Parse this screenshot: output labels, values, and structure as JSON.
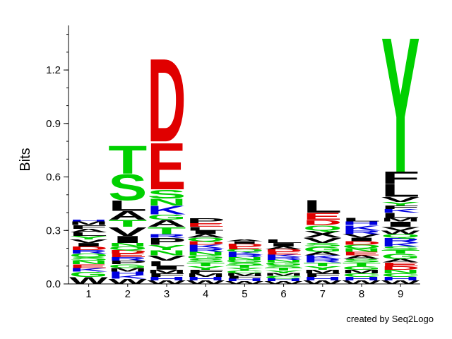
{
  "credit": "created by Seq2Logo",
  "colors": {
    "acidic": "#e00000",
    "polar": "#00d000",
    "basic": "#0000e0",
    "hydrophobic": "#000000"
  },
  "chart_data": {
    "type": "sequence-logo",
    "ylabel": "Bits",
    "ylim": [
      0,
      1.45
    ],
    "yticks": [
      "0.0",
      "0.3",
      "0.6",
      "0.9",
      "1.2"
    ],
    "ytick_values": [
      0,
      0.3,
      0.6,
      0.9,
      1.2
    ],
    "positions": [
      "1",
      "2",
      "3",
      "4",
      "5",
      "6",
      "7",
      "8",
      "9"
    ],
    "columns": [
      [
        [
          "W",
          0.04
        ],
        [
          "G",
          0.03
        ],
        [
          "K",
          0.02
        ],
        [
          "E",
          0.02
        ],
        [
          "N",
          0.02
        ],
        [
          "S",
          0.02
        ],
        [
          "Q",
          0.02
        ],
        [
          "R",
          0.02
        ],
        [
          "D",
          0.02
        ],
        [
          "I",
          0.02
        ],
        [
          "V",
          0.02
        ],
        [
          "Y",
          0.02
        ],
        [
          "L",
          0.02
        ],
        [
          "A",
          0.02
        ],
        [
          "F",
          0.02
        ],
        [
          "M",
          0.02
        ],
        [
          "H",
          0.01
        ]
      ],
      [
        [
          "W",
          0.03
        ],
        [
          "K",
          0.02
        ],
        [
          "H",
          0.02
        ],
        [
          "M",
          0.02
        ],
        [
          "G",
          0.02
        ],
        [
          "P",
          0.02
        ],
        [
          "R",
          0.02
        ],
        [
          "E",
          0.02
        ],
        [
          "D",
          0.02
        ],
        [
          "Q",
          0.02
        ],
        [
          "N",
          0.02
        ],
        [
          "I",
          0.04
        ],
        [
          "V",
          0.05
        ],
        [
          "T",
          0.04
        ],
        [
          "A",
          0.05
        ],
        [
          "L",
          0.06
        ],
        [
          "S",
          0.15
        ],
        [
          "T",
          0.16
        ]
      ],
      [
        [
          "W",
          0.02
        ],
        [
          "H",
          0.02
        ],
        [
          "F",
          0.02
        ],
        [
          "M",
          0.02
        ],
        [
          "I",
          0.02
        ],
        [
          "L",
          0.03
        ],
        [
          "V",
          0.03
        ],
        [
          "N",
          0.03
        ],
        [
          "Y",
          0.03
        ],
        [
          "P",
          0.04
        ],
        [
          "R",
          0.02
        ],
        [
          "T",
          0.04
        ],
        [
          "A",
          0.04
        ],
        [
          "G",
          0.03
        ],
        [
          "K",
          0.05
        ],
        [
          "N",
          0.04
        ],
        [
          "S",
          0.05
        ],
        [
          "E",
          0.27
        ],
        [
          "D",
          0.48
        ]
      ],
      [
        [
          "W",
          0.02
        ],
        [
          "H",
          0.02
        ],
        [
          "M",
          0.02
        ],
        [
          "F",
          0.02
        ],
        [
          "Y",
          0.02
        ],
        [
          "T",
          0.02
        ],
        [
          "S",
          0.02
        ],
        [
          "G",
          0.02
        ],
        [
          "N",
          0.02
        ],
        [
          "R",
          0.02
        ],
        [
          "K",
          0.02
        ],
        [
          "D",
          0.02
        ],
        [
          "Q",
          0.02
        ],
        [
          "A",
          0.02
        ],
        [
          "I",
          0.02
        ],
        [
          "L",
          0.02
        ],
        [
          "E",
          0.02
        ],
        [
          "P",
          0.03
        ]
      ],
      [
        [
          "W",
          0.015
        ],
        [
          "H",
          0.015
        ],
        [
          "F",
          0.015
        ],
        [
          "M",
          0.015
        ],
        [
          "C",
          0.015
        ],
        [
          "Y",
          0.015
        ],
        [
          "T",
          0.015
        ],
        [
          "S",
          0.015
        ],
        [
          "G",
          0.015
        ],
        [
          "N",
          0.015
        ],
        [
          "R",
          0.015
        ],
        [
          "K",
          0.015
        ],
        [
          "Q",
          0.015
        ],
        [
          "E",
          0.015
        ],
        [
          "D",
          0.015
        ],
        [
          "I",
          0.015
        ],
        [
          "A",
          0.01
        ]
      ],
      [
        [
          "W",
          0.015
        ],
        [
          "H",
          0.015
        ],
        [
          "C",
          0.015
        ],
        [
          "M",
          0.015
        ],
        [
          "Y",
          0.015
        ],
        [
          "T",
          0.015
        ],
        [
          "S",
          0.015
        ],
        [
          "G",
          0.015
        ],
        [
          "N",
          0.015
        ],
        [
          "R",
          0.015
        ],
        [
          "K",
          0.015
        ],
        [
          "E",
          0.015
        ],
        [
          "D",
          0.015
        ],
        [
          "A",
          0.015
        ],
        [
          "I",
          0.02
        ],
        [
          "L",
          0.02
        ]
      ],
      [
        [
          "W",
          0.02
        ],
        [
          "H",
          0.02
        ],
        [
          "F",
          0.02
        ],
        [
          "M",
          0.02
        ],
        [
          "Y",
          0.02
        ],
        [
          "T",
          0.02
        ],
        [
          "R",
          0.02
        ],
        [
          "K",
          0.02
        ],
        [
          "A",
          0.02
        ],
        [
          "G",
          0.03
        ],
        [
          "S",
          0.02
        ],
        [
          "V",
          0.03
        ],
        [
          "X",
          0.04
        ],
        [
          "Q",
          0.03
        ],
        [
          "D",
          0.03
        ],
        [
          "E",
          0.04
        ],
        [
          "L",
          0.07
        ]
      ],
      [
        [
          "W",
          0.02
        ],
        [
          "H",
          0.02
        ],
        [
          "C",
          0.02
        ],
        [
          "M",
          0.02
        ],
        [
          "G",
          0.02
        ],
        [
          "T",
          0.02
        ],
        [
          "S",
          0.02
        ],
        [
          "A",
          0.02
        ],
        [
          "E",
          0.02
        ],
        [
          "N",
          0.02
        ],
        [
          "Q",
          0.02
        ],
        [
          "D",
          0.02
        ],
        [
          "I",
          0.02
        ],
        [
          "V",
          0.02
        ],
        [
          "R",
          0.02
        ],
        [
          "K",
          0.03
        ],
        [
          "H",
          0.02
        ],
        [
          "L",
          0.02
        ]
      ],
      [
        [
          "W",
          0.02
        ],
        [
          "H",
          0.02
        ],
        [
          "C",
          0.02
        ],
        [
          "N",
          0.02
        ],
        [
          "D",
          0.02
        ],
        [
          "E",
          0.02
        ],
        [
          "A",
          0.02
        ],
        [
          "G",
          0.03
        ],
        [
          "T",
          0.02
        ],
        [
          "S",
          0.02
        ],
        [
          "K",
          0.02
        ],
        [
          "R",
          0.03
        ],
        [
          "Q",
          0.02
        ],
        [
          "W",
          0.02
        ],
        [
          "V",
          0.02
        ],
        [
          "I",
          0.03
        ],
        [
          "M",
          0.02
        ],
        [
          "L",
          0.03
        ],
        [
          "K",
          0.02
        ],
        [
          "F",
          0.02
        ],
        [
          "Y",
          0.02
        ],
        [
          "V",
          0.03
        ],
        [
          "L",
          0.07
        ],
        [
          "F",
          0.07
        ],
        [
          "Y",
          0.78
        ]
      ]
    ]
  }
}
